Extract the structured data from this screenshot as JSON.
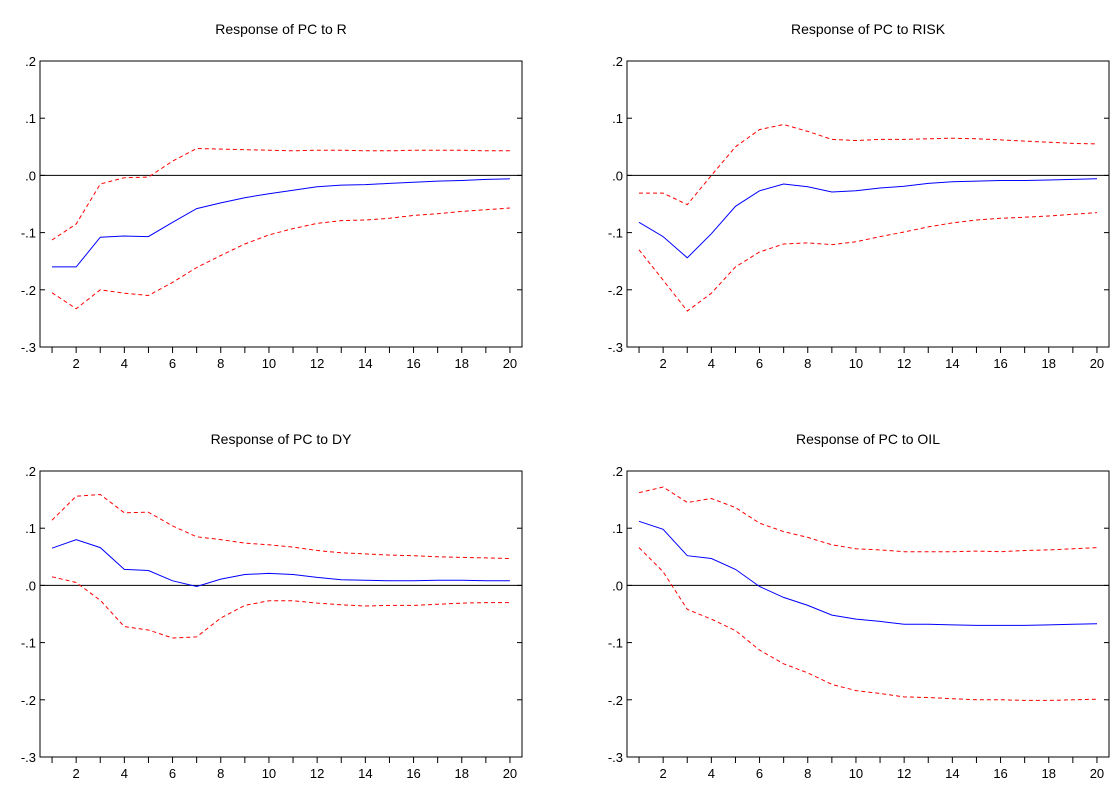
{
  "chart_data": [
    {
      "type": "line",
      "title": "Response of PC to R",
      "xlabel": "",
      "ylabel": "",
      "x": [
        1,
        2,
        3,
        4,
        5,
        6,
        7,
        8,
        9,
        10,
        11,
        12,
        13,
        14,
        15,
        16,
        17,
        18,
        19,
        20
      ],
      "xticks": [
        2,
        4,
        6,
        8,
        10,
        12,
        14,
        16,
        18,
        20
      ],
      "yticks": [
        -0.3,
        -0.2,
        -0.1,
        0.0,
        0.1,
        0.2
      ],
      "ytick_labels": [
        "-.3",
        "-.2",
        "-.1",
        ".0",
        ".1",
        ".2"
      ],
      "ylim": [
        -0.3,
        0.2
      ],
      "xlim": [
        0.5,
        20.5
      ],
      "zero_line": true,
      "grid": false,
      "series": [
        {
          "role": "response",
          "color": "#0000ff",
          "dash": "solid",
          "values": [
            -0.16,
            -0.16,
            -0.108,
            -0.106,
            -0.107,
            -0.082,
            -0.058,
            -0.048,
            -0.039,
            -0.032,
            -0.026,
            -0.02,
            -0.017,
            -0.016,
            -0.014,
            -0.012,
            -0.01,
            -0.009,
            -0.007,
            -0.006
          ]
        },
        {
          "role": "upper band",
          "color": "#ff0000",
          "dash": "dashed",
          "values": [
            -0.113,
            -0.085,
            -0.015,
            -0.004,
            -0.003,
            0.025,
            0.047,
            0.046,
            0.045,
            0.044,
            0.043,
            0.044,
            0.044,
            0.043,
            0.043,
            0.044,
            0.044,
            0.044,
            0.043,
            0.043
          ]
        },
        {
          "role": "lower band",
          "color": "#ff0000",
          "dash": "dashed",
          "values": [
            -0.205,
            -0.233,
            -0.2,
            -0.206,
            -0.21,
            -0.187,
            -0.161,
            -0.14,
            -0.12,
            -0.104,
            -0.093,
            -0.084,
            -0.079,
            -0.078,
            -0.075,
            -0.07,
            -0.067,
            -0.063,
            -0.06,
            -0.057
          ]
        }
      ]
    },
    {
      "type": "line",
      "title": "Response of PC to RISK",
      "xlabel": "",
      "ylabel": "",
      "x": [
        1,
        2,
        3,
        4,
        5,
        6,
        7,
        8,
        9,
        10,
        11,
        12,
        13,
        14,
        15,
        16,
        17,
        18,
        19,
        20
      ],
      "xticks": [
        2,
        4,
        6,
        8,
        10,
        12,
        14,
        16,
        18,
        20
      ],
      "yticks": [
        -0.3,
        -0.2,
        -0.1,
        0.0,
        0.1,
        0.2
      ],
      "ytick_labels": [
        "-.3",
        "-.2",
        "-.1",
        ".0",
        ".1",
        ".2"
      ],
      "ylim": [
        -0.3,
        0.2
      ],
      "xlim": [
        0.5,
        20.5
      ],
      "zero_line": true,
      "grid": false,
      "series": [
        {
          "role": "response",
          "color": "#0000ff",
          "dash": "solid",
          "values": [
            -0.082,
            -0.107,
            -0.144,
            -0.102,
            -0.054,
            -0.027,
            -0.015,
            -0.02,
            -0.029,
            -0.027,
            -0.022,
            -0.019,
            -0.014,
            -0.011,
            -0.01,
            -0.009,
            -0.009,
            -0.008,
            -0.007,
            -0.006
          ]
        },
        {
          "role": "upper band",
          "color": "#ff0000",
          "dash": "dashed",
          "values": [
            -0.031,
            -0.031,
            -0.051,
            0.0,
            0.05,
            0.08,
            0.089,
            0.077,
            0.063,
            0.061,
            0.063,
            0.063,
            0.064,
            0.065,
            0.064,
            0.062,
            0.06,
            0.058,
            0.056,
            0.055
          ]
        },
        {
          "role": "lower band",
          "color": "#ff0000",
          "dash": "dashed",
          "values": [
            -0.13,
            -0.183,
            -0.237,
            -0.206,
            -0.16,
            -0.134,
            -0.12,
            -0.118,
            -0.121,
            -0.116,
            -0.107,
            -0.099,
            -0.09,
            -0.083,
            -0.078,
            -0.075,
            -0.073,
            -0.071,
            -0.068,
            -0.065
          ]
        }
      ]
    },
    {
      "type": "line",
      "title": "Response of PC to DY",
      "xlabel": "",
      "ylabel": "",
      "x": [
        1,
        2,
        3,
        4,
        5,
        6,
        7,
        8,
        9,
        10,
        11,
        12,
        13,
        14,
        15,
        16,
        17,
        18,
        19,
        20
      ],
      "xticks": [
        2,
        4,
        6,
        8,
        10,
        12,
        14,
        16,
        18,
        20
      ],
      "yticks": [
        -0.3,
        -0.2,
        -0.1,
        0.0,
        0.1,
        0.2
      ],
      "ytick_labels": [
        "-.3",
        "-.2",
        "-.1",
        ".0",
        ".1",
        ".2"
      ],
      "ylim": [
        -0.3,
        0.2
      ],
      "xlim": [
        0.5,
        20.5
      ],
      "zero_line": true,
      "grid": false,
      "series": [
        {
          "role": "response",
          "color": "#0000ff",
          "dash": "solid",
          "values": [
            0.065,
            0.08,
            0.066,
            0.028,
            0.026,
            0.008,
            -0.002,
            0.011,
            0.019,
            0.021,
            0.019,
            0.014,
            0.01,
            0.009,
            0.008,
            0.008,
            0.009,
            0.009,
            0.008,
            0.008
          ]
        },
        {
          "role": "upper band",
          "color": "#ff0000",
          "dash": "dashed",
          "values": [
            0.114,
            0.156,
            0.159,
            0.127,
            0.128,
            0.104,
            0.085,
            0.08,
            0.074,
            0.071,
            0.067,
            0.061,
            0.057,
            0.055,
            0.053,
            0.052,
            0.05,
            0.049,
            0.048,
            0.047
          ]
        },
        {
          "role": "lower band",
          "color": "#ff0000",
          "dash": "dashed",
          "values": [
            0.015,
            0.005,
            -0.026,
            -0.072,
            -0.078,
            -0.092,
            -0.09,
            -0.057,
            -0.035,
            -0.027,
            -0.027,
            -0.031,
            -0.034,
            -0.036,
            -0.035,
            -0.035,
            -0.033,
            -0.031,
            -0.03,
            -0.03
          ]
        }
      ]
    },
    {
      "type": "line",
      "title": "Response of PC to OIL",
      "xlabel": "",
      "ylabel": "",
      "x": [
        1,
        2,
        3,
        4,
        5,
        6,
        7,
        8,
        9,
        10,
        11,
        12,
        13,
        14,
        15,
        16,
        17,
        18,
        19,
        20
      ],
      "xticks": [
        2,
        4,
        6,
        8,
        10,
        12,
        14,
        16,
        18,
        20
      ],
      "yticks": [
        -0.3,
        -0.2,
        -0.1,
        0.0,
        0.1,
        0.2
      ],
      "ytick_labels": [
        "-.3",
        "-.2",
        "-.1",
        ".0",
        ".1",
        ".2"
      ],
      "ylim": [
        -0.3,
        0.2
      ],
      "xlim": [
        0.5,
        20.5
      ],
      "zero_line": true,
      "grid": false,
      "series": [
        {
          "role": "response",
          "color": "#0000ff",
          "dash": "solid",
          "values": [
            0.112,
            0.098,
            0.052,
            0.047,
            0.028,
            -0.002,
            -0.021,
            -0.035,
            -0.052,
            -0.059,
            -0.063,
            -0.068,
            -0.068,
            -0.069,
            -0.07,
            -0.07,
            -0.07,
            -0.069,
            -0.068,
            -0.067
          ]
        },
        {
          "role": "upper band",
          "color": "#ff0000",
          "dash": "dashed",
          "values": [
            0.162,
            0.172,
            0.145,
            0.152,
            0.136,
            0.109,
            0.094,
            0.084,
            0.071,
            0.064,
            0.062,
            0.059,
            0.059,
            0.059,
            0.06,
            0.059,
            0.061,
            0.062,
            0.064,
            0.066
          ]
        },
        {
          "role": "lower band",
          "color": "#ff0000",
          "dash": "dashed",
          "values": [
            0.066,
            0.024,
            -0.042,
            -0.059,
            -0.079,
            -0.113,
            -0.137,
            -0.153,
            -0.173,
            -0.184,
            -0.189,
            -0.195,
            -0.196,
            -0.198,
            -0.2,
            -0.2,
            -0.201,
            -0.201,
            -0.2,
            -0.199
          ]
        }
      ]
    }
  ]
}
